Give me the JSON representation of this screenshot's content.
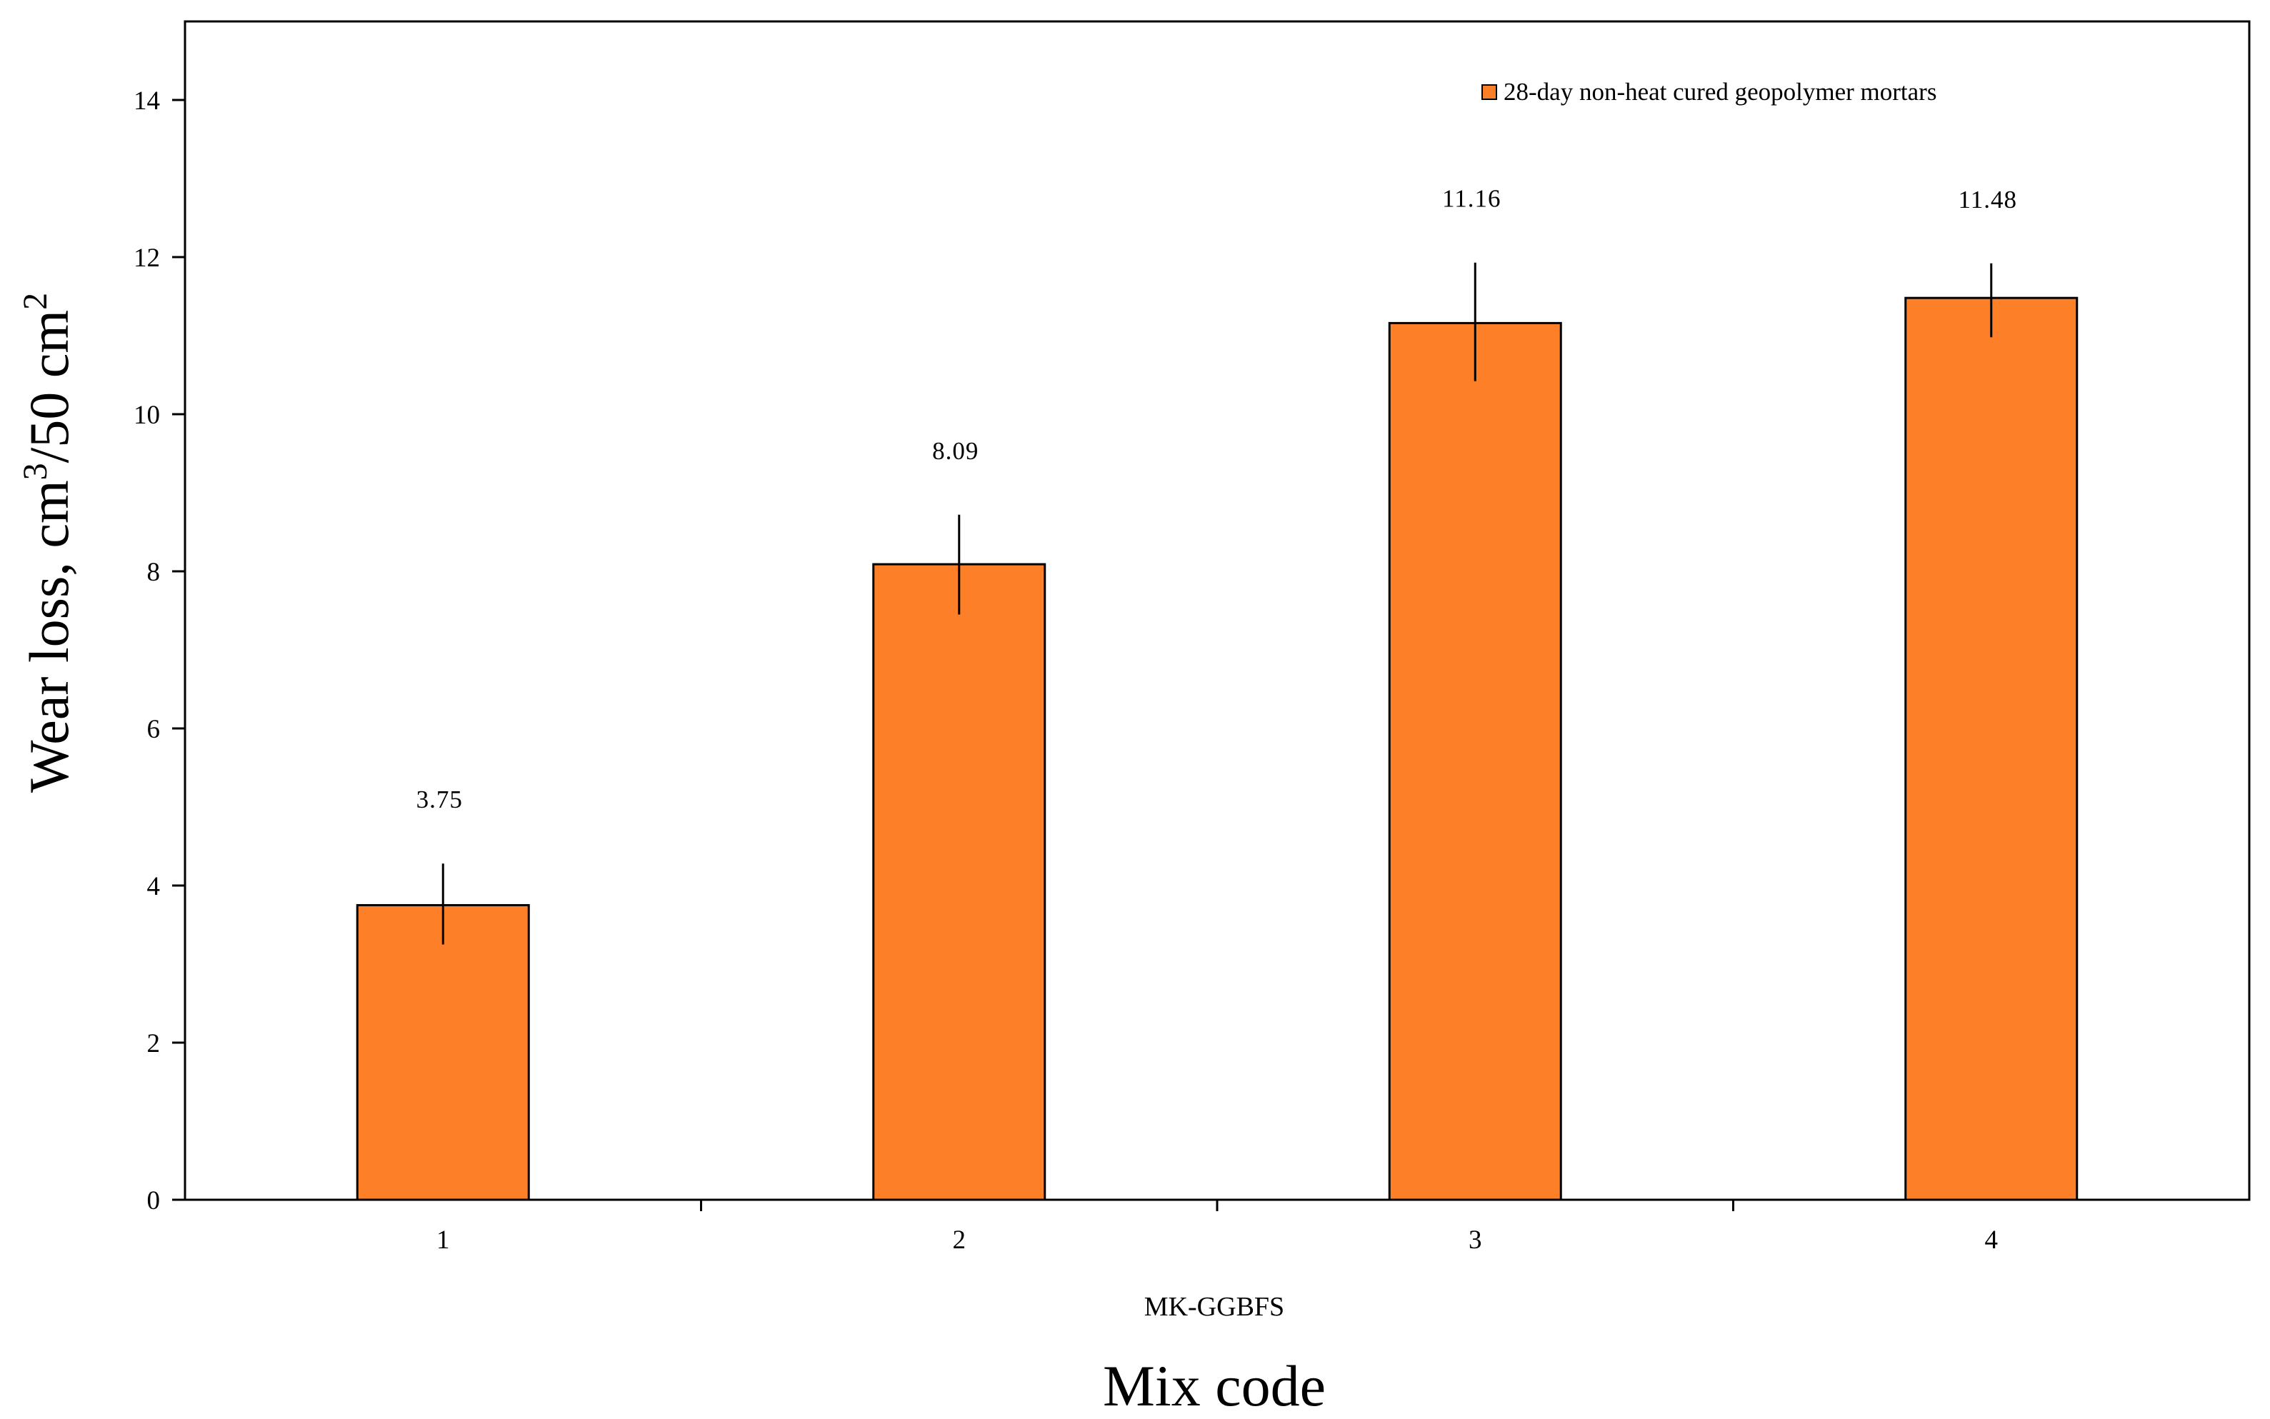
{
  "chart_data": {
    "type": "bar",
    "title": "",
    "categories": [
      "1",
      "2",
      "3",
      "4"
    ],
    "series": [
      {
        "name": "28-day non-heat cured geopolymer mortars",
        "values": [
          3.75,
          8.09,
          11.16,
          11.48
        ],
        "error_low": [
          3.25,
          7.45,
          10.42,
          10.98
        ],
        "error_high": [
          4.28,
          8.72,
          11.93,
          11.92
        ],
        "color": "#fd7f27"
      }
    ],
    "data_labels": [
      "3.75",
      "8.09",
      "11.16",
      "11.48"
    ],
    "xlabel": "Mix code",
    "group_label": "MK-GGBFS",
    "ylabel": "Wear loss, cm³/50 cm²",
    "ylabel_parts": {
      "a": "Wear loss, cm",
      "sup1": "3",
      "b": "/50 cm",
      "sup2": "2"
    },
    "ylim": [
      0,
      15
    ],
    "yticks": [
      0,
      2,
      4,
      6,
      8,
      10,
      12,
      14
    ],
    "legend_position": "top-right",
    "grid": false,
    "bar_edge_color": "#000000"
  }
}
